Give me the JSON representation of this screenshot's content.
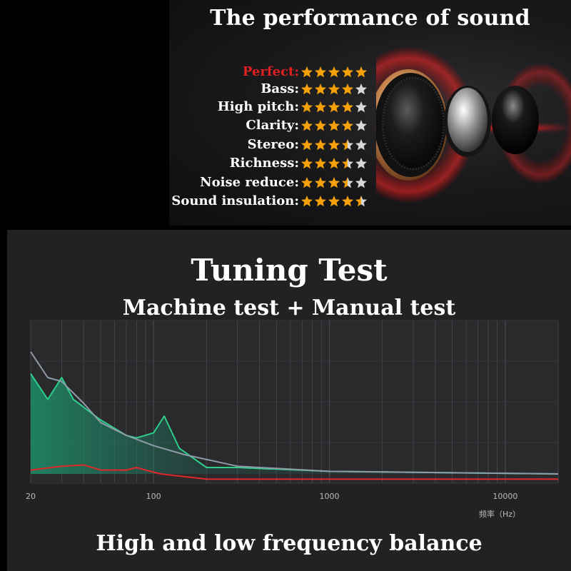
{
  "performance": {
    "title": "The performance of sound",
    "ratings": [
      {
        "label": "Perfect:",
        "stars": 5,
        "accent": true
      },
      {
        "label": "Bass:",
        "stars": 4
      },
      {
        "label": "High pitch:",
        "stars": 4
      },
      {
        "label": "Clarity:",
        "stars": 4
      },
      {
        "label": "Stereo:",
        "stars": 3.5
      },
      {
        "label": "Richness:",
        "stars": 3.5
      },
      {
        "label": "Noise reduce:",
        "stars": 3.5
      },
      {
        "label": "Sound insulation:",
        "stars": 4.5
      }
    ],
    "colors": {
      "star": "#f6a10c",
      "star_empty": "#d8d8d8",
      "accent": "#e02020"
    }
  },
  "tuning": {
    "title": "Tuning Test",
    "subtitle": "Machine test + Manual test",
    "caption": "High and low frequency balance"
  },
  "chart_data": {
    "type": "line",
    "xscale": "log",
    "xlim": [
      20,
      20000
    ],
    "xticks": [
      20,
      100,
      1000,
      10000
    ],
    "xtick_labels": [
      "20",
      "100",
      "1000",
      "10000"
    ],
    "xlabel": "频率（Hz）",
    "ylabel": "",
    "grid": true,
    "series": [
      {
        "color": "#2ecf8a",
        "fill": true,
        "points": [
          [
            20,
            0.78
          ],
          [
            25,
            0.58
          ],
          [
            30,
            0.75
          ],
          [
            35,
            0.58
          ],
          [
            50,
            0.42
          ],
          [
            70,
            0.3
          ],
          [
            80,
            0.28
          ],
          [
            100,
            0.32
          ],
          [
            115,
            0.45
          ],
          [
            140,
            0.2
          ],
          [
            200,
            0.05
          ],
          [
            300,
            0.05
          ],
          [
            1000,
            0.02
          ],
          [
            20000,
            0.0
          ]
        ]
      },
      {
        "color": "#8f9ba8",
        "fill": false,
        "points": [
          [
            20,
            0.95
          ],
          [
            25,
            0.75
          ],
          [
            30,
            0.72
          ],
          [
            40,
            0.55
          ],
          [
            50,
            0.4
          ],
          [
            70,
            0.3
          ],
          [
            100,
            0.22
          ],
          [
            150,
            0.15
          ],
          [
            300,
            0.06
          ],
          [
            1000,
            0.02
          ],
          [
            20000,
            0.0
          ]
        ]
      },
      {
        "color": "#e0282a",
        "fill": false,
        "points": [
          [
            20,
            0.03
          ],
          [
            30,
            0.06
          ],
          [
            40,
            0.07
          ],
          [
            50,
            0.03
          ],
          [
            70,
            0.03
          ],
          [
            80,
            0.05
          ],
          [
            90,
            0.03
          ],
          [
            110,
            0.0
          ],
          [
            200,
            -0.04
          ],
          [
            1000,
            -0.04
          ],
          [
            20000,
            -0.04
          ]
        ]
      }
    ]
  }
}
